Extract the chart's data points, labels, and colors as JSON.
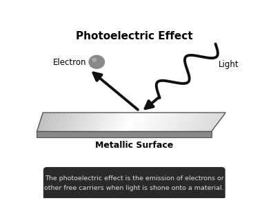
{
  "title": "Photoelectric Effect",
  "title_fontsize": 11,
  "title_fontweight": "bold",
  "label_light": "Light",
  "label_electron": "Electron",
  "label_surface": "Metallic Surface",
  "label_surface_fontsize": 9,
  "caption": "The photoelectric effect is the emission of electrons or\nother free carriers when light is shone onto a material.",
  "bg_color": "#ffffff",
  "electron_color": "#888888",
  "arrow_color": "#111111",
  "caption_bg": "#2a2a2a",
  "caption_text_color": "#dddddd",
  "caption_fontsize": 6.8,
  "label_fontsize": 8.5,
  "wave_linewidth": 2.8,
  "arrow_linewidth": 2.8
}
